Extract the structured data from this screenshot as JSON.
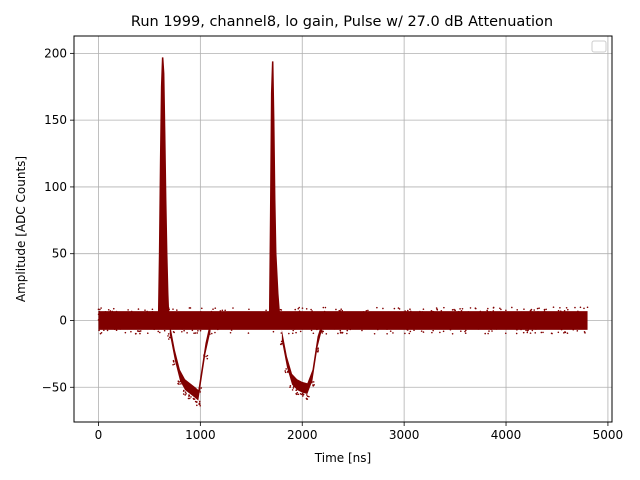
{
  "chart_data": {
    "type": "scatter",
    "title": "Run 1999, channel8, lo gain, Pulse w/ 27.0 dB Attenuation",
    "xlabel": "Time [ns]",
    "ylabel": "Amplitude [ADC Counts]",
    "xlim": [
      -240,
      5040
    ],
    "ylim": [
      -76,
      213
    ],
    "xticks": [
      0,
      1000,
      2000,
      3000,
      4000,
      5000
    ],
    "yticks": [
      -50,
      0,
      50,
      100,
      150,
      200
    ],
    "grid": true,
    "legend": "top-right",
    "color": "#800000",
    "series": [
      {
        "baseline": {
          "x_range": [
            0,
            4800
          ],
          "y_range": [
            -10,
            10
          ]
        },
        "pulses": [
          {
            "peak": [
              [
                590,
                0
              ],
              [
                600,
                50
              ],
              [
                610,
                120
              ],
              [
                620,
                175
              ],
              [
                630,
                197
              ],
              [
                640,
                185
              ],
              [
                650,
                140
              ],
              [
                660,
                90
              ],
              [
                670,
                50
              ],
              [
                680,
                20
              ],
              [
                690,
                0
              ]
            ],
            "undershoot": [
              [
                700,
                -10
              ],
              [
                750,
                -30
              ],
              [
                800,
                -45
              ],
              [
                850,
                -52
              ],
              [
                900,
                -55
              ],
              [
                950,
                -58
              ],
              [
                980,
                -60
              ],
              [
                1000,
                -50
              ],
              [
                1050,
                -25
              ],
              [
                1100,
                -8
              ]
            ]
          },
          {
            "peak": [
              [
                1680,
                0
              ],
              [
                1690,
                80
              ],
              [
                1700,
                170
              ],
              [
                1710,
                194
              ],
              [
                1720,
                150
              ],
              [
                1730,
                90
              ],
              [
                1740,
                50
              ],
              [
                1760,
                20
              ],
              [
                1780,
                0
              ]
            ],
            "undershoot": [
              [
                1800,
                -15
              ],
              [
                1850,
                -35
              ],
              [
                1900,
                -48
              ],
              [
                1950,
                -52
              ],
              [
                2000,
                -54
              ],
              [
                2050,
                -55
              ],
              [
                2100,
                -45
              ],
              [
                2150,
                -20
              ],
              [
                2200,
                -5
              ]
            ]
          }
        ]
      }
    ]
  }
}
